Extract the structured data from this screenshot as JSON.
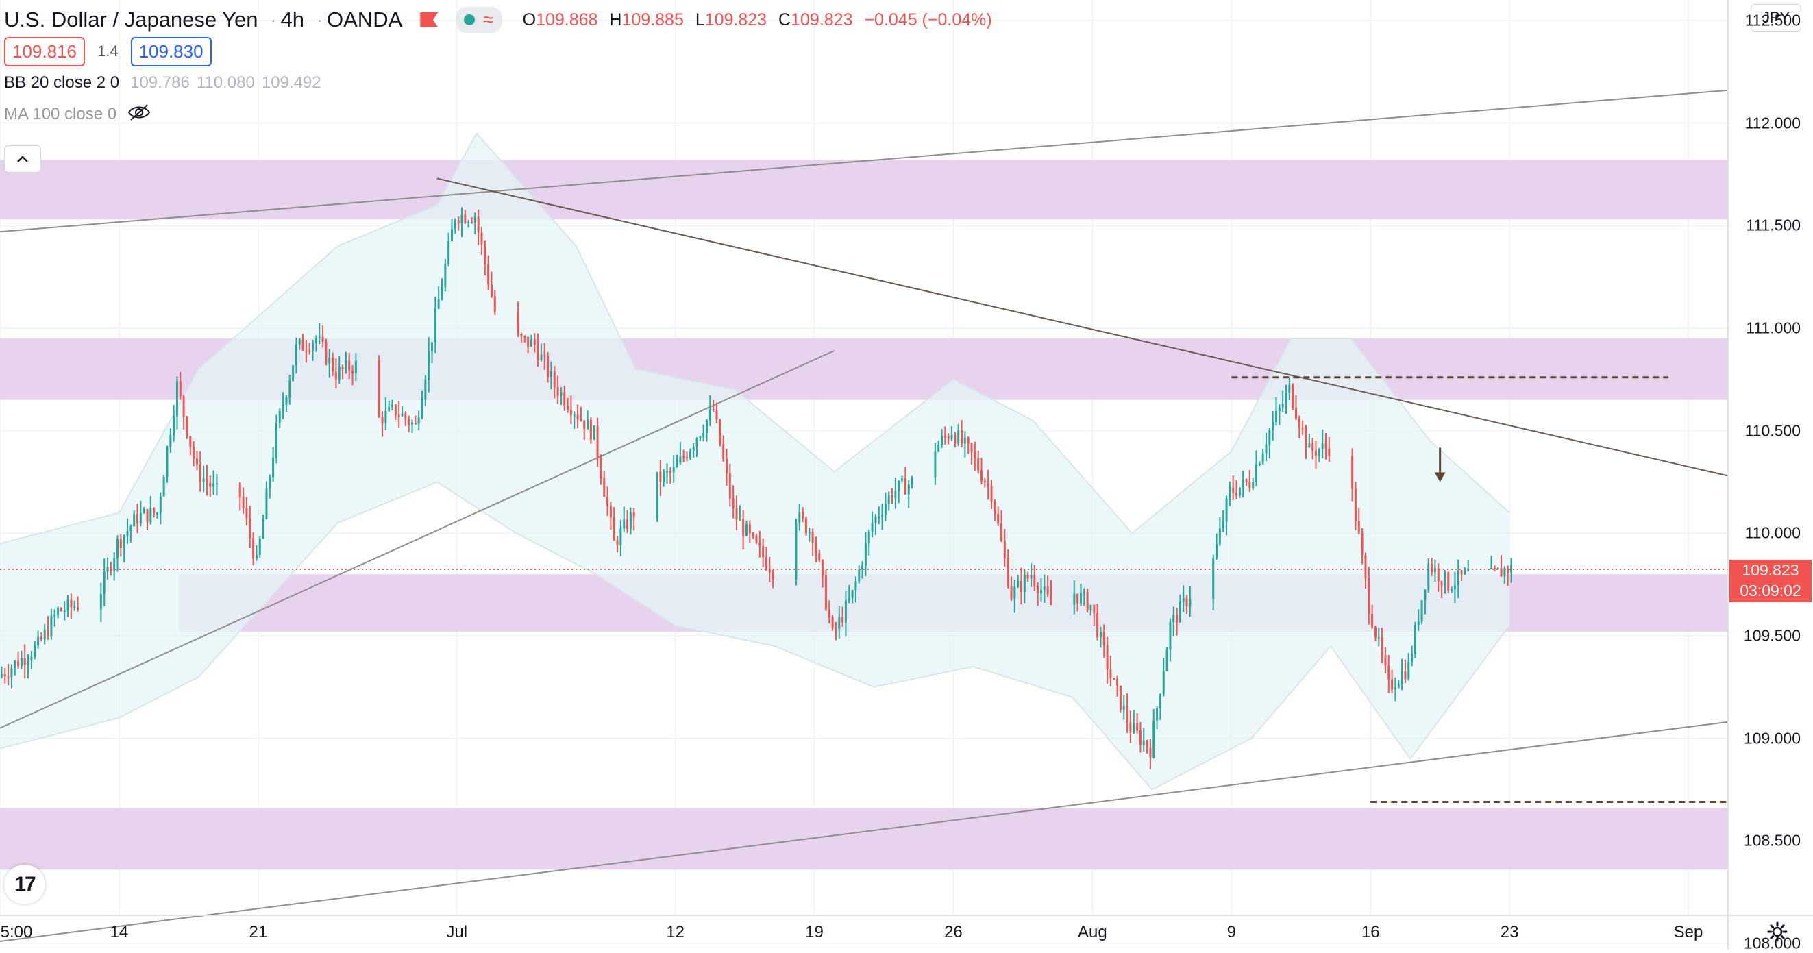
{
  "symbol": {
    "title": "U.S. Dollar / Japanese Yen",
    "interval": "4h",
    "exchange": "OANDA",
    "separator": "·"
  },
  "ohlc": {
    "o_label": "O",
    "o": "109.868",
    "h_label": "H",
    "h": "109.885",
    "l_label": "L",
    "l": "109.823",
    "c_label": "C",
    "c": "109.823",
    "change": "−0.045 (−0.04%)"
  },
  "quote": {
    "sell": "109.816",
    "spread": "1.4",
    "buy": "109.830"
  },
  "indicators": [
    {
      "name": "BB 20 close 2 0",
      "values": [
        "109.786",
        "110.080",
        "109.492"
      ]
    },
    {
      "name": "MA 100 close 0",
      "hidden_icon": "eye-off-icon"
    }
  ],
  "currency": "JPY",
  "current_price": {
    "price": "109.823",
    "countdown": "03:09:02"
  },
  "colors": {
    "up": "#26a69a",
    "down": "#f05350",
    "zone": "#e6d1ec",
    "bb_fill": "#e4f4f6",
    "trendline": "#8e8e8e",
    "downtrend": "#6b5a4f",
    "dashed": "#5c4630"
  },
  "chart_data": {
    "type": "candlestick",
    "title": "U.S. Dollar / Japanese Yen · 4h · OANDA",
    "y_ticks": [
      "112.500",
      "112.000",
      "111.500",
      "111.000",
      "110.500",
      "110.000",
      "109.500",
      "109.000",
      "108.500",
      "108.000"
    ],
    "x_ticks": [
      "5:00",
      "14",
      "21",
      "Jul",
      "12",
      "19",
      "26",
      "Aug",
      "9",
      "16",
      "23",
      "Sep"
    ],
    "ylim": [
      107.97,
      112.6
    ],
    "x_range_dates": [
      "2021-06-08",
      "2021-09-03"
    ],
    "grid": true,
    "support_resistance_zones": [
      {
        "low": 111.53,
        "high": 111.82
      },
      {
        "low": 110.65,
        "high": 110.95
      },
      {
        "low": 109.52,
        "high": 109.8,
        "from": "2021-06-17"
      },
      {
        "low": 108.36,
        "high": 108.66
      }
    ],
    "trendlines": [
      {
        "from": [
          "2021-06-08",
          111.47
        ],
        "to": [
          "2021-09-03",
          112.16
        ]
      },
      {
        "from": [
          "2021-06-08",
          108.01
        ],
        "to": [
          "2021-09-03",
          109.08
        ]
      },
      {
        "from": [
          "2021-06-08",
          109.05
        ],
        "to": [
          "2021-07-20",
          110.89
        ]
      },
      {
        "from": [
          "2021-06-30",
          111.73
        ],
        "to": [
          "2021-09-03",
          110.28
        ]
      }
    ],
    "dashed_levels": [
      {
        "value": 110.76,
        "from": "2021-08-09",
        "to": "2021-08-31"
      },
      {
        "value": 108.69,
        "from": "2021-08-16",
        "to": "2021-09-03"
      }
    ],
    "arrow": {
      "date": "2021-08-19 12:00",
      "value": 110.25
    },
    "close_path": [
      [
        "2021-06-08",
        109.3
      ],
      [
        "2021-06-10",
        109.45
      ],
      [
        "2021-06-11",
        109.62
      ],
      [
        "2021-06-13",
        109.68
      ],
      [
        "2021-06-14",
        109.95
      ],
      [
        "2021-06-15",
        110.08
      ],
      [
        "2021-06-16",
        110.1
      ],
      [
        "2021-06-17",
        110.72
      ],
      [
        "2021-06-18",
        110.3
      ],
      [
        "2021-06-19",
        110.2
      ],
      [
        "2021-06-20",
        110.25
      ],
      [
        "2021-06-21",
        109.85
      ],
      [
        "2021-06-22",
        110.5
      ],
      [
        "2021-06-23",
        110.9
      ],
      [
        "2021-06-24",
        110.95
      ],
      [
        "2021-06-25",
        110.78
      ],
      [
        "2021-06-26",
        110.82
      ],
      [
        "2021-06-27",
        110.55
      ],
      [
        "2021-06-28",
        110.6
      ],
      [
        "2021-06-29",
        110.52
      ],
      [
        "2021-06-30",
        111.05
      ],
      [
        "2021-07-01",
        111.55
      ],
      [
        "2021-07-02",
        111.55
      ],
      [
        "2021-07-03",
        111.08
      ],
      [
        "2021-07-04",
        110.95
      ],
      [
        "2021-07-05",
        110.92
      ],
      [
        "2021-07-06",
        110.72
      ],
      [
        "2021-07-07",
        110.6
      ],
      [
        "2021-07-08",
        110.48
      ],
      [
        "2021-07-09",
        109.95
      ],
      [
        "2021-07-10",
        110.1
      ],
      [
        "2021-07-11",
        110.25
      ],
      [
        "2021-07-12",
        110.3
      ],
      [
        "2021-07-13",
        110.45
      ],
      [
        "2021-07-14",
        110.6
      ],
      [
        "2021-07-15",
        110.1
      ],
      [
        "2021-07-16",
        109.95
      ],
      [
        "2021-07-17",
        109.82
      ],
      [
        "2021-07-18",
        110.1
      ],
      [
        "2021-07-19",
        110.0
      ],
      [
        "2021-07-20",
        109.5
      ],
      [
        "2021-07-21",
        109.7
      ],
      [
        "2021-07-22",
        110.05
      ],
      [
        "2021-07-23",
        110.2
      ],
      [
        "2021-07-24",
        110.25
      ],
      [
        "2021-07-25",
        110.4
      ],
      [
        "2021-07-26",
        110.5
      ],
      [
        "2021-07-27",
        110.38
      ],
      [
        "2021-07-28",
        110.2
      ],
      [
        "2021-07-29",
        109.7
      ],
      [
        "2021-07-30",
        109.8
      ],
      [
        "2021-07-31",
        109.65
      ],
      [
        "2021-08-01",
        109.72
      ],
      [
        "2021-08-02",
        109.65
      ],
      [
        "2021-08-03",
        109.3
      ],
      [
        "2021-08-04",
        109.05
      ],
      [
        "2021-08-05",
        108.95
      ],
      [
        "2021-08-06",
        109.55
      ],
      [
        "2021-08-07",
        109.7
      ],
      [
        "2021-08-08",
        109.8
      ],
      [
        "2021-08-09",
        110.2
      ],
      [
        "2021-08-10",
        110.25
      ],
      [
        "2021-08-11",
        110.5
      ],
      [
        "2021-08-12",
        110.7
      ],
      [
        "2021-08-13",
        110.4
      ],
      [
        "2021-08-14",
        110.42
      ],
      [
        "2021-08-15",
        110.3
      ],
      [
        "2021-08-16",
        109.65
      ],
      [
        "2021-08-17",
        109.25
      ],
      [
        "2021-08-18",
        109.35
      ],
      [
        "2021-08-19",
        109.85
      ],
      [
        "2021-08-20",
        109.75
      ],
      [
        "2021-08-21",
        109.8
      ],
      [
        "2021-08-22",
        109.78
      ],
      [
        "2021-08-23",
        109.83
      ]
    ],
    "bollinger_approx": {
      "upper": [
        [
          "2021-06-08",
          109.95
        ],
        [
          "2021-06-14",
          110.1
        ],
        [
          "2021-06-18",
          110.8
        ],
        [
          "2021-06-25",
          111.4
        ],
        [
          "2021-06-30",
          111.6
        ],
        [
          "2021-07-02",
          111.95
        ],
        [
          "2021-07-07",
          111.4
        ],
        [
          "2021-07-10",
          110.8
        ],
        [
          "2021-07-15",
          110.7
        ],
        [
          "2021-07-20",
          110.3
        ],
        [
          "2021-07-26",
          110.75
        ],
        [
          "2021-07-30",
          110.55
        ],
        [
          "2021-08-04",
          110.0
        ],
        [
          "2021-08-09",
          110.4
        ],
        [
          "2021-08-12",
          110.95
        ],
        [
          "2021-08-15",
          110.95
        ],
        [
          "2021-08-19",
          110.45
        ],
        [
          "2021-08-23",
          110.1
        ]
      ],
      "lower": [
        [
          "2021-06-08",
          108.95
        ],
        [
          "2021-06-14",
          109.1
        ],
        [
          "2021-06-18",
          109.3
        ],
        [
          "2021-06-25",
          110.05
        ],
        [
          "2021-06-30",
          110.25
        ],
        [
          "2021-07-04",
          110.0
        ],
        [
          "2021-07-08",
          109.8
        ],
        [
          "2021-07-12",
          109.55
        ],
        [
          "2021-07-17",
          109.45
        ],
        [
          "2021-07-22",
          109.25
        ],
        [
          "2021-07-27",
          109.35
        ],
        [
          "2021-08-01",
          109.2
        ],
        [
          "2021-08-05",
          108.75
        ],
        [
          "2021-08-10",
          109.0
        ],
        [
          "2021-08-14",
          109.45
        ],
        [
          "2021-08-18",
          108.9
        ],
        [
          "2021-08-23",
          109.55
        ]
      ]
    }
  }
}
